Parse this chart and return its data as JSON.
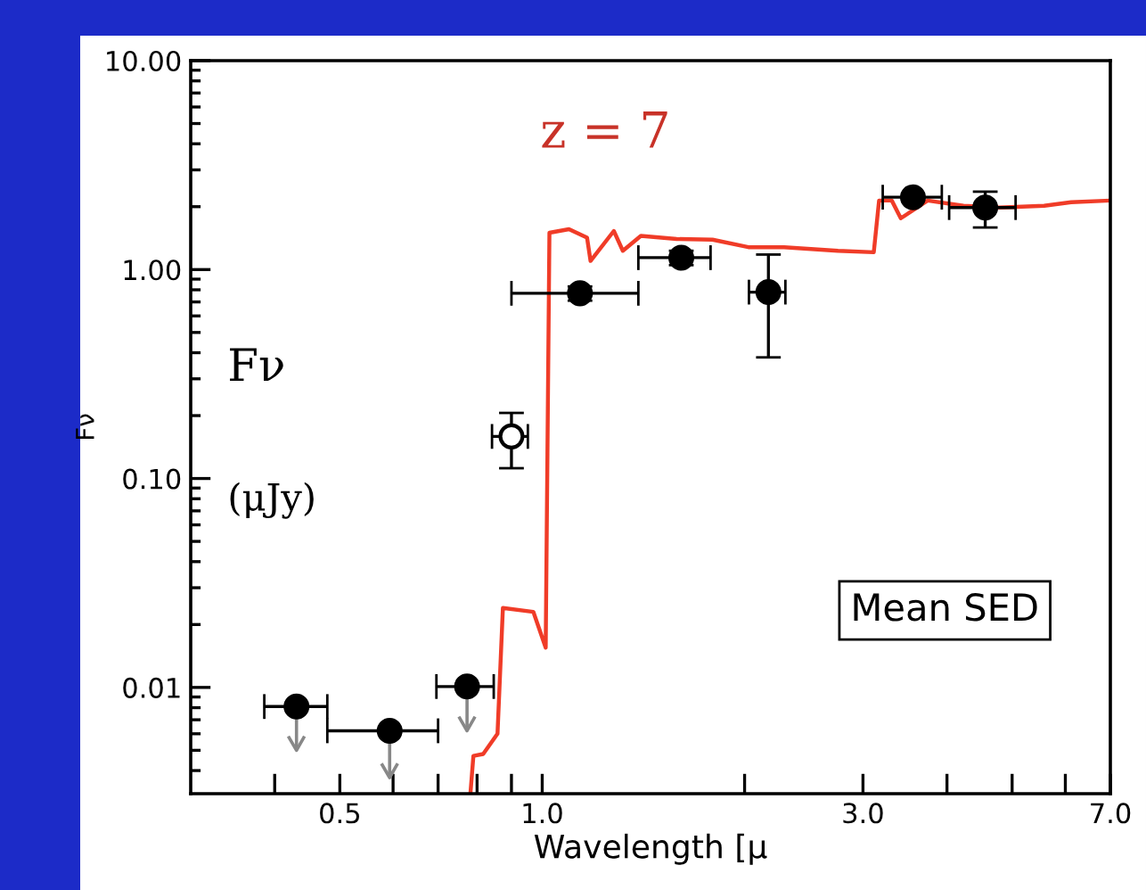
{
  "chart_data": {
    "type": "scatter",
    "xlabel": "Wavelength [μ",
    "ylabel": "Fν",
    "log": "xy",
    "grid": false,
    "legend": false,
    "xlim": [
      0.3,
      7.0
    ],
    "ylim": [
      0.0031,
      10
    ],
    "xticks": [
      {
        "value": 0.4,
        "label": null
      },
      0.5,
      {
        "value": 0.6,
        "label": null
      },
      {
        "value": 0.7,
        "label": null
      },
      {
        "value": 0.8,
        "label": null
      },
      {
        "value": 0.9,
        "label": null
      },
      {
        "value": 1,
        "label": "1.0"
      },
      {
        "value": 2,
        "label": null
      },
      {
        "value": 3,
        "label": "3.0"
      },
      {
        "value": 4,
        "label": null
      },
      {
        "value": 5,
        "label": null
      },
      {
        "value": 6,
        "label": null
      },
      {
        "value": 7,
        "label": "7.0"
      }
    ],
    "yticks": [
      {
        "value": 0.01,
        "label": "0.01"
      },
      {
        "value": 0.1,
        "label": "0.10"
      },
      {
        "value": 1,
        "label": "1.00"
      },
      {
        "value": 10,
        "label": "10.00"
      }
    ],
    "annotations": [
      "z = 7",
      "Fν",
      "(μJy)",
      "Mean SED"
    ],
    "series": [
      {
        "type": "line",
        "color": "#f03c28",
        "x": [
          0.782,
          0.79,
          0.817,
          0.858,
          0.874,
          0.97,
          1.012,
          1.025,
          1.096,
          1.166,
          1.18,
          1.278,
          1.318,
          1.402,
          1.585,
          1.792,
          2.026,
          2.29,
          2.754,
          3.113,
          3.17,
          3.311,
          3.415,
          3.744,
          4.233,
          4.786,
          5.58,
          6.12,
          7.0
        ],
        "values": [
          0.0031,
          0.0047,
          0.0048,
          0.006,
          0.024,
          0.023,
          0.0155,
          1.5,
          1.56,
          1.42,
          1.1,
          1.53,
          1.23,
          1.45,
          1.4,
          1.39,
          1.28,
          1.28,
          1.23,
          1.21,
          2.14,
          2.14,
          1.76,
          2.14,
          2.02,
          1.98,
          2.02,
          2.1,
          2.14
        ]
      },
      {
        "color": "#000000",
        "marker": "circle",
        "x": [
          0.431,
          0.593,
          0.773
        ],
        "values": [
          0.0081,
          0.0062,
          0.0101
        ],
        "xerrors": [
          [
            0.386,
            0.479
          ],
          [
            0.479,
            0.7
          ],
          [
            0.696,
            0.847
          ]
        ],
        "errors": [
          [
            0.005,
            0.0081
          ],
          [
            0.0037,
            0.0062
          ],
          [
            0.0062,
            0.0101
          ]
        ]
      },
      {
        "color": "#ffffff",
        "marker": "circle",
        "x": [
          0.9
        ],
        "values": [
          0.159
        ],
        "xerrors": [
          [
            0.842,
            0.952
          ]
        ],
        "errors": [
          [
            0.112,
            0.206
          ]
        ]
      },
      {
        "color": "#000000",
        "marker": "circle",
        "x": [
          1.138,
          1.61,
          2.17,
          3.56,
          4.56
        ],
        "values": [
          0.77,
          1.14,
          0.78,
          2.22,
          1.98
        ],
        "xerrors": [
          [
            0.9,
            1.39
          ],
          [
            1.39,
            1.78
          ],
          [
            2.03,
            2.3
          ],
          [
            3.21,
            3.93
          ],
          [
            4.03,
            5.06
          ]
        ],
        "errors": [
          [
            0.71,
            0.83
          ],
          [
            1.05,
            1.23
          ],
          [
            0.38,
            1.18
          ],
          null,
          [
            1.59,
            2.36
          ]
        ]
      }
    ]
  }
}
